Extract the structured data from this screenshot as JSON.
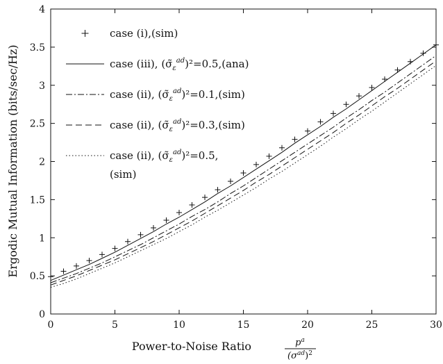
{
  "chart_data": {
    "type": "line",
    "title": "",
    "xlabel": "Power-to-Noise Ratio",
    "xlabel_fraction": {
      "numerator": "p^a",
      "denominator": "(σ_z^{ad})^2"
    },
    "ylabel": "Ergodic Mutual Information (bits/sec/Hz)",
    "xlim": [
      0,
      30
    ],
    "ylim": [
      0,
      4
    ],
    "x_ticks": [
      0,
      5,
      10,
      15,
      20,
      25,
      30
    ],
    "y_ticks": [
      0,
      0.5,
      1,
      1.5,
      2,
      2.5,
      3,
      3.5,
      4
    ],
    "x_tick_labels": [
      "0",
      "5",
      "10",
      "15",
      "20",
      "25",
      "30"
    ],
    "y_tick_labels": [
      "0",
      "0.5",
      "1",
      "1.5",
      "2",
      "2.5",
      "3",
      "3.5",
      "4"
    ],
    "grid": false,
    "legend_position": "top-left",
    "x": [
      0,
      1,
      2,
      3,
      4,
      5,
      6,
      7,
      8,
      9,
      10,
      11,
      12,
      13,
      14,
      15,
      16,
      17,
      18,
      19,
      20,
      21,
      22,
      23,
      24,
      25,
      26,
      27,
      28,
      29,
      30
    ],
    "series": [
      {
        "name": "case (i),(sim)",
        "legend_main": "case (i),(sim)",
        "legend_sub": "",
        "legend_tail": "",
        "legend_line2": "",
        "style": "plus",
        "values": [
          0.49,
          0.56,
          0.63,
          0.7,
          0.78,
          0.86,
          0.95,
          1.04,
          1.13,
          1.23,
          1.33,
          1.43,
          1.53,
          1.63,
          1.74,
          1.85,
          1.96,
          2.07,
          2.18,
          2.29,
          2.4,
          2.52,
          2.63,
          2.75,
          2.86,
          2.97,
          3.08,
          3.2,
          3.31,
          3.42,
          3.53
        ]
      },
      {
        "name": "case (iii), (σ̃_ε^{ad})^2=0.5,(ana)",
        "legend_main": "case (iii), (σ̃",
        "legend_sub": "ad",
        "legend_tail": ")²=0.5,(ana)",
        "legend_line2": "",
        "style": "solid",
        "values": [
          0.44,
          0.51,
          0.58,
          0.65,
          0.73,
          0.81,
          0.9,
          0.99,
          1.08,
          1.18,
          1.27,
          1.37,
          1.47,
          1.58,
          1.68,
          1.79,
          1.9,
          2.01,
          2.12,
          2.24,
          2.35,
          2.46,
          2.58,
          2.69,
          2.81,
          2.93,
          3.05,
          3.17,
          3.29,
          3.41,
          3.53
        ]
      },
      {
        "name": "case (ii), (σ̃_ε^{ad})^2=0.1,(sim)",
        "legend_main": "case (ii), (σ̃",
        "legend_sub": "ad",
        "legend_tail": ")²=0.1,(sim)",
        "legend_line2": "",
        "style": "dashdot",
        "values": [
          0.41,
          0.47,
          0.53,
          0.6,
          0.67,
          0.75,
          0.83,
          0.91,
          1.0,
          1.09,
          1.18,
          1.28,
          1.37,
          1.47,
          1.58,
          1.68,
          1.79,
          1.9,
          2.01,
          2.12,
          2.23,
          2.34,
          2.45,
          2.57,
          2.68,
          2.8,
          2.91,
          3.03,
          3.15,
          3.27,
          3.39
        ]
      },
      {
        "name": "case (ii), (σ̃_ε^{ad})^2=0.3,(sim)",
        "legend_main": "case (ii), (σ̃",
        "legend_sub": "ad",
        "legend_tail": ")²=0.3,(sim)",
        "legend_line2": "",
        "style": "dashed",
        "values": [
          0.38,
          0.44,
          0.5,
          0.57,
          0.64,
          0.71,
          0.79,
          0.87,
          0.95,
          1.04,
          1.13,
          1.22,
          1.32,
          1.42,
          1.52,
          1.62,
          1.73,
          1.83,
          1.94,
          2.05,
          2.16,
          2.27,
          2.38,
          2.5,
          2.61,
          2.73,
          2.85,
          2.96,
          3.08,
          3.2,
          3.32
        ]
      },
      {
        "name": "case (ii), (σ̃_ε^{ad})^2=0.5, (sim)",
        "legend_main": "case (ii), (σ̃",
        "legend_sub": "ad",
        "legend_tail": ")²=0.5,",
        "legend_line2": "(sim)",
        "style": "dotted",
        "values": [
          0.35,
          0.4,
          0.46,
          0.53,
          0.6,
          0.67,
          0.75,
          0.83,
          0.91,
          0.99,
          1.08,
          1.17,
          1.27,
          1.36,
          1.46,
          1.56,
          1.66,
          1.77,
          1.87,
          1.98,
          2.09,
          2.2,
          2.32,
          2.43,
          2.55,
          2.66,
          2.78,
          2.9,
          3.02,
          3.14,
          3.26
        ]
      }
    ]
  }
}
